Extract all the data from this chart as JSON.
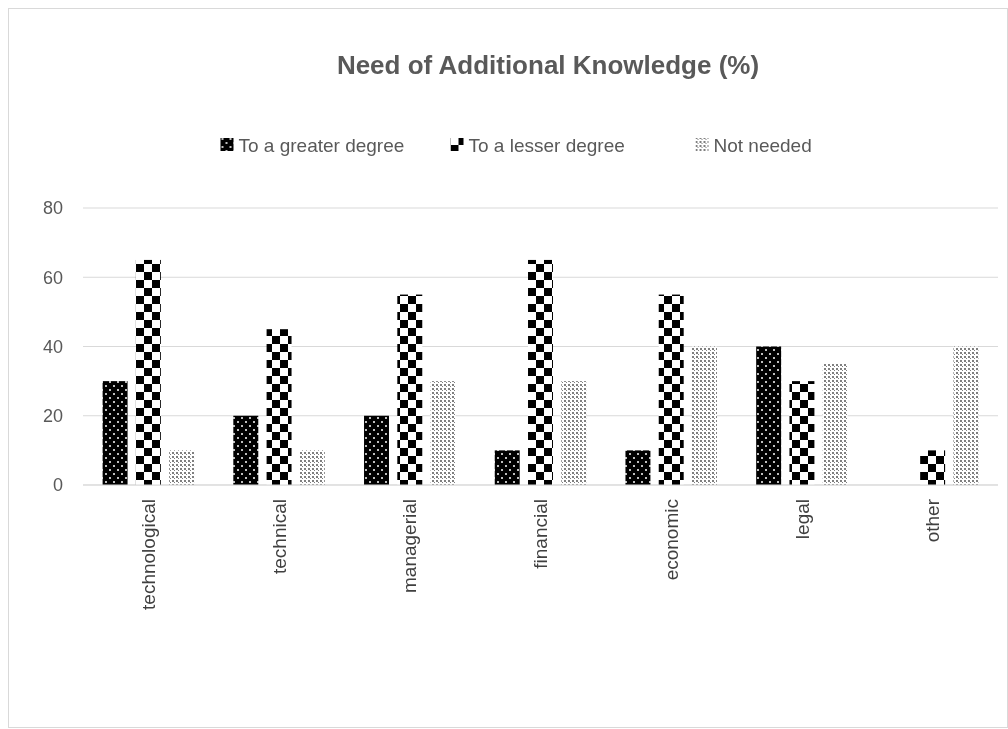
{
  "chart_data": {
    "type": "bar",
    "title": "Need of Additional Knowledge (%)",
    "categories": [
      "technological",
      "technical",
      "managerial",
      "financial",
      "economic",
      "legal",
      "other"
    ],
    "series": [
      {
        "name": "To a greater degree",
        "color": "#000000",
        "values": [
          30,
          20,
          20,
          10,
          10,
          40,
          0
        ]
      },
      {
        "name": "To a lesser degree",
        "color": "#000000",
        "values": [
          65,
          45,
          55,
          65,
          55,
          30,
          10
        ]
      },
      {
        "name": "Not needed",
        "color": "#7f7f7f",
        "values": [
          10,
          10,
          30,
          30,
          40,
          35,
          40
        ]
      }
    ],
    "ylim": [
      0,
      80
    ],
    "yticks": [
      0,
      20,
      40,
      60,
      80
    ],
    "grid": "y",
    "legend": "top"
  }
}
